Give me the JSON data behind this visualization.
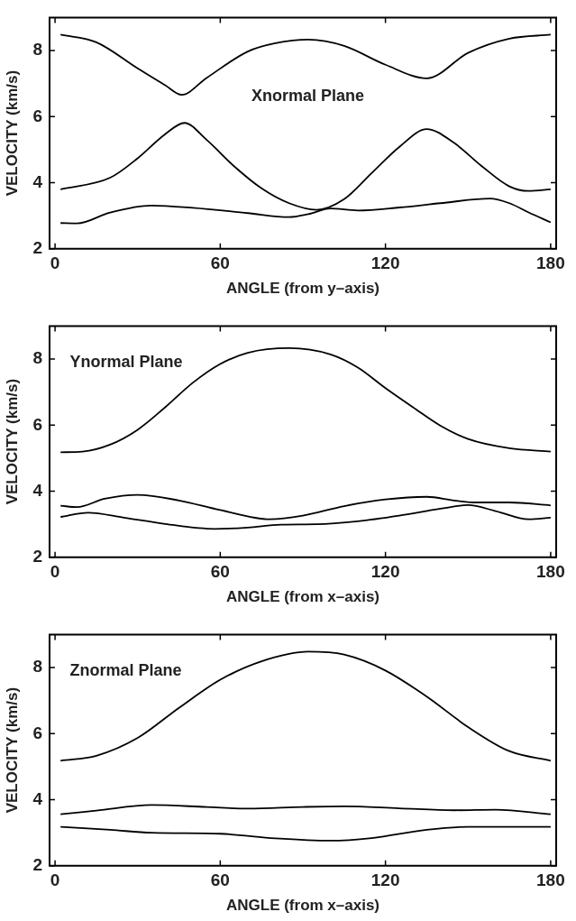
{
  "chart_data": [
    {
      "type": "line",
      "xlabel": "ANGLE (from y–axis)",
      "ylabel": "VELOCITY (km/s)",
      "annotations": [
        "Xnormal Plane"
      ],
      "xlim": [
        -2,
        182
      ],
      "ylim": [
        2,
        9
      ],
      "xticks": [
        0,
        60,
        120,
        180
      ],
      "yticks": [
        2,
        4,
        6,
        8
      ],
      "legend": false,
      "series": [
        {
          "color": "#000000",
          "x": [
            2,
            15,
            30,
            40,
            46,
            55,
            70,
            80,
            92,
            105,
            120,
            135,
            150,
            165,
            180
          ],
          "values": [
            8.48,
            8.25,
            7.46,
            6.95,
            6.66,
            7.17,
            7.97,
            8.22,
            8.33,
            8.14,
            7.57,
            7.16,
            7.93,
            8.36,
            8.48
          ]
        },
        {
          "color": "#000000",
          "x": [
            2,
            20,
            30,
            40,
            47,
            55,
            65,
            75,
            85,
            95,
            105,
            115,
            125,
            135,
            145,
            155,
            165,
            172,
            180
          ],
          "values": [
            3.8,
            4.15,
            4.74,
            5.47,
            5.81,
            5.3,
            4.5,
            3.83,
            3.38,
            3.18,
            3.5,
            4.29,
            5.08,
            5.62,
            5.2,
            4.5,
            3.89,
            3.75,
            3.8
          ]
        },
        {
          "color": "#000000",
          "x": [
            2,
            8,
            20,
            35,
            50,
            70,
            85,
            92,
            100,
            110,
            125,
            140,
            158,
            165,
            172,
            180
          ],
          "values": [
            2.78,
            2.77,
            3.1,
            3.31,
            3.24,
            3.08,
            2.96,
            3.05,
            3.22,
            3.16,
            3.25,
            3.38,
            3.52,
            3.38,
            3.1,
            2.8
          ]
        }
      ]
    },
    {
      "type": "line",
      "xlabel": "ANGLE (from x–axis)",
      "ylabel": "VELOCITY (km/s)",
      "annotations": [
        "Ynormal Plane"
      ],
      "xlim": [
        -2,
        182
      ],
      "ylim": [
        2,
        9
      ],
      "xticks": [
        0,
        60,
        120,
        180
      ],
      "yticks": [
        2,
        4,
        6,
        8
      ],
      "legend": false,
      "series": [
        {
          "color": "#000000",
          "x": [
            2,
            10,
            20,
            30,
            40,
            50,
            60,
            70,
            85,
            100,
            110,
            120,
            130,
            140,
            150,
            165,
            180
          ],
          "values": [
            5.18,
            5.2,
            5.41,
            5.86,
            6.54,
            7.28,
            7.85,
            8.19,
            8.33,
            8.14,
            7.74,
            7.12,
            6.54,
            5.98,
            5.58,
            5.3,
            5.2
          ]
        },
        {
          "color": "#000000",
          "x": [
            2,
            8,
            18,
            30,
            45,
            60,
            78,
            90,
            105,
            120,
            135,
            145,
            152,
            165,
            180
          ],
          "values": [
            3.56,
            3.52,
            3.77,
            3.89,
            3.72,
            3.43,
            3.15,
            3.26,
            3.55,
            3.75,
            3.83,
            3.72,
            3.66,
            3.66,
            3.57
          ]
        },
        {
          "color": "#000000",
          "x": [
            2,
            12,
            25,
            40,
            58,
            70,
            82,
            95,
            110,
            125,
            140,
            150,
            160,
            172,
            180
          ],
          "values": [
            3.22,
            3.35,
            3.2,
            3.01,
            2.86,
            2.9,
            2.99,
            3.0,
            3.09,
            3.26,
            3.47,
            3.58,
            3.4,
            3.15,
            3.2
          ]
        }
      ]
    },
    {
      "type": "line",
      "xlabel": "ANGLE (from x–axis)",
      "ylabel": "VELOCITY (km/s)",
      "annotations": [
        "Znormal Plane"
      ],
      "xlim": [
        -2,
        182
      ],
      "ylim": [
        2,
        9
      ],
      "xticks": [
        0,
        60,
        120,
        180
      ],
      "yticks": [
        2,
        4,
        6,
        8
      ],
      "legend": false,
      "series": [
        {
          "color": "#000000",
          "x": [
            2,
            15,
            30,
            45,
            60,
            75,
            92,
            105,
            120,
            135,
            150,
            165,
            180
          ],
          "values": [
            5.18,
            5.33,
            5.87,
            6.78,
            7.63,
            8.19,
            8.48,
            8.39,
            7.91,
            7.12,
            6.2,
            5.47,
            5.18
          ]
        },
        {
          "color": "#000000",
          "x": [
            2,
            15,
            35,
            55,
            70,
            90,
            105,
            125,
            145,
            160,
            180
          ],
          "values": [
            3.56,
            3.67,
            3.84,
            3.78,
            3.73,
            3.78,
            3.8,
            3.74,
            3.68,
            3.7,
            3.56
          ]
        },
        {
          "color": "#000000",
          "x": [
            2,
            20,
            35,
            60,
            80,
            100,
            115,
            135,
            150,
            180
          ],
          "values": [
            3.18,
            3.09,
            3.0,
            2.97,
            2.83,
            2.76,
            2.84,
            3.09,
            3.18,
            3.18
          ]
        }
      ]
    }
  ]
}
